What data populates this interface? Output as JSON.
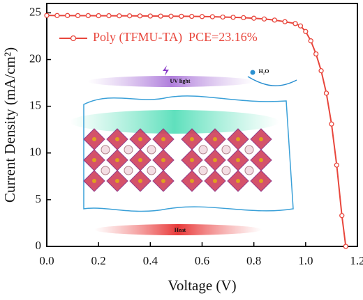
{
  "chart_data": {
    "type": "line",
    "xlabel": "Voltage (V)",
    "ylabel": "Current Density (mA/cm²)",
    "x": [
      0,
      0.04,
      0.08,
      0.12,
      0.16,
      0.2,
      0.24,
      0.28,
      0.32,
      0.36,
      0.4,
      0.44,
      0.48,
      0.52,
      0.56,
      0.6,
      0.64,
      0.68,
      0.72,
      0.76,
      0.8,
      0.84,
      0.88,
      0.92,
      0.96,
      0.98,
      1.0,
      1.02,
      1.04,
      1.06,
      1.08,
      1.1,
      1.12,
      1.14,
      1.155
    ],
    "series": [
      {
        "name": "Poly (TFMU-TA)  PCE=23.16%",
        "color": "#e8463c",
        "values": [
          24.72,
          24.71,
          24.71,
          24.7,
          24.7,
          24.69,
          24.69,
          24.68,
          24.68,
          24.67,
          24.66,
          24.65,
          24.64,
          24.63,
          24.62,
          24.6,
          24.58,
          24.55,
          24.52,
          24.48,
          24.42,
          24.34,
          24.22,
          24.05,
          23.85,
          23.6,
          23.0,
          22.0,
          20.6,
          18.8,
          16.4,
          13.1,
          8.7,
          3.3,
          0
        ]
      }
    ],
    "xlim": [
      0,
      1.2
    ],
    "xticks": [
      {
        "value": 0,
        "label": "0.0"
      },
      0.2,
      0.4,
      0.6,
      0.8,
      {
        "value": 1,
        "label": "1.0"
      },
      1.2
    ],
    "ylim": [
      0,
      26
    ],
    "yticks": [
      0,
      5,
      10,
      15,
      20,
      25
    ],
    "legend": "upper left",
    "annotations": [
      "UV light",
      "H₂O",
      "Heat"
    ]
  }
}
